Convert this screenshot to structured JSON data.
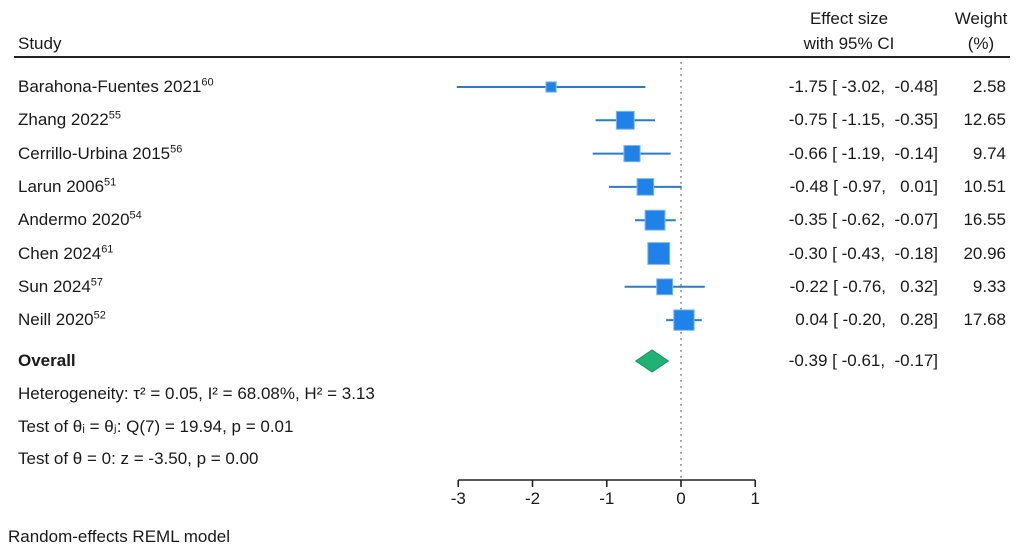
{
  "header": {
    "study_col": "Study",
    "effect_col_line1": "Effect size",
    "effect_col_line2": "with 95% CI",
    "weight_col_line1": "Weight",
    "weight_col_line2": "(%)"
  },
  "chart_data": {
    "type": "forest",
    "x_axis": {
      "ticks": [
        -3,
        -2,
        -1,
        0,
        1
      ],
      "range": [
        -3,
        1
      ],
      "reference_line": 0
    },
    "studies": [
      {
        "name": "Barahona-Fuentes 2021",
        "ref": "60",
        "effect": -1.75,
        "ci_low": -3.02,
        "ci_high": -0.48,
        "weight": 2.58,
        "es_label": "-1.75 [ -3.02,  -0.48]",
        "weight_label": "2.58"
      },
      {
        "name": "Zhang 2022",
        "ref": "55",
        "effect": -0.75,
        "ci_low": -1.15,
        "ci_high": -0.35,
        "weight": 12.65,
        "es_label": "-0.75 [ -1.15,  -0.35]",
        "weight_label": "12.65"
      },
      {
        "name": "Cerrillo-Urbina 2015",
        "ref": "56",
        "effect": -0.66,
        "ci_low": -1.19,
        "ci_high": -0.14,
        "weight": 9.74,
        "es_label": "-0.66 [ -1.19,  -0.14]",
        "weight_label": "9.74"
      },
      {
        "name": "Larun 2006",
        "ref": "51",
        "effect": -0.48,
        "ci_low": -0.97,
        "ci_high": 0.01,
        "weight": 10.51,
        "es_label": "-0.48 [ -0.97,   0.01]",
        "weight_label": "10.51"
      },
      {
        "name": "Andermo 2020",
        "ref": "54",
        "effect": -0.35,
        "ci_low": -0.62,
        "ci_high": -0.07,
        "weight": 16.55,
        "es_label": "-0.35 [ -0.62,  -0.07]",
        "weight_label": "16.55"
      },
      {
        "name": "Chen 2024",
        "ref": "61",
        "effect": -0.3,
        "ci_low": -0.43,
        "ci_high": -0.18,
        "weight": 20.96,
        "es_label": "-0.30 [ -0.43,  -0.18]",
        "weight_label": "20.96"
      },
      {
        "name": "Sun 2024",
        "ref": "57",
        "effect": -0.22,
        "ci_low": -0.76,
        "ci_high": 0.32,
        "weight": 9.33,
        "es_label": "-0.22 [ -0.76,   0.32]",
        "weight_label": "9.33"
      },
      {
        "name": "Neill 2020",
        "ref": "52",
        "effect": 0.04,
        "ci_low": -0.2,
        "ci_high": 0.28,
        "weight": 17.68,
        "es_label": "0.04 [ -0.20,   0.28]",
        "weight_label": "17.68"
      }
    ],
    "overall": {
      "label": "Overall",
      "effect": -0.39,
      "ci_low": -0.61,
      "ci_high": -0.17,
      "es_label": "-0.39 [ -0.61,  -0.17]"
    },
    "colors": {
      "marker_fill": "#1f82e8",
      "marker_edge": "#7db8f2",
      "ci_line": "#2b7bc9",
      "diamond_fill": "#20b273",
      "diamond_edge": "#13935c",
      "reference_line": "#8a8a8a",
      "axis": "#222222"
    }
  },
  "stats": {
    "heterogeneity": "Heterogeneity: τ² = 0.05, I² = 68.08%, H² = 3.13",
    "test_theta_ij": "Test of θᵢ = θⱼ: Q(7) = 19.94, p = 0.01",
    "test_theta_zero": "Test of θ = 0: z = -3.50, p = 0.00"
  },
  "footer": {
    "model_note": "Random-effects REML model"
  }
}
